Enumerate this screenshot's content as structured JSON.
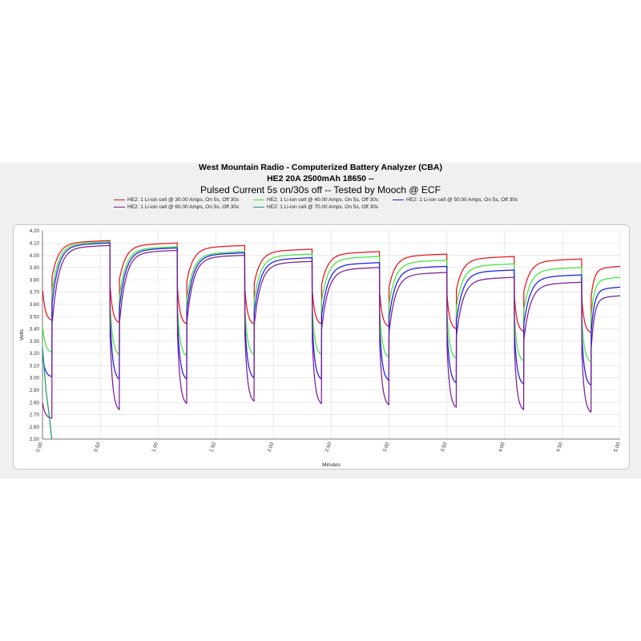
{
  "chart_data": {
    "type": "line",
    "title": "West Mountain Radio - Computerized Battery Analyzer (CBA)",
    "subtitle": "HE2 20A 2500mAh 18650 --",
    "subtitle2": "Pulsed Current 5s on/30s off -- Tested by Mooch @ ECF",
    "xlabel": "Minutes",
    "ylabel": "Volts",
    "xlim": [
      0,
      5
    ],
    "ylim": [
      2.5,
      4.2
    ],
    "xticks": [
      "0.00",
      "0.50",
      "1.00",
      "1.50",
      "2.00",
      "2.50",
      "3.00",
      "3.50",
      "4.00",
      "4.50",
      "5.00"
    ],
    "yticks": [
      "2.50",
      "2.60",
      "2.70",
      "2.80",
      "2.90",
      "3.00",
      "3.10",
      "3.20",
      "3.30",
      "3.40",
      "3.50",
      "3.60",
      "3.70",
      "3.80",
      "3.90",
      "4.00",
      "4.10",
      "4.20"
    ],
    "grid": true,
    "legend_placement": "top",
    "pulse_period_min": 0.5833,
    "pulse_on_min": 0.0833,
    "series": [
      {
        "name": "HE2: 1 Li-ion cell @ 30.00 Amps, On 5s, Off 30s",
        "color": "#e8141c",
        "rest_v": [
          4.12,
          4.1,
          4.08,
          4.05,
          4.03,
          4.01,
          3.99,
          3.97,
          3.91
        ],
        "load_v": [
          3.47,
          3.45,
          3.44,
          3.44,
          3.44,
          3.42,
          3.4,
          3.38,
          3.37
        ],
        "last_recovered_to_5min": true
      },
      {
        "name": "HE2: 1 Li-ion cell @ 40.00 Amps, On 5s, Off 30s",
        "color": "#3ee83a",
        "rest_v": [
          4.11,
          4.07,
          4.03,
          4.01,
          3.99,
          3.96,
          3.93,
          3.9,
          3.82
        ],
        "load_v": [
          3.21,
          3.19,
          3.18,
          3.19,
          3.19,
          3.17,
          3.16,
          3.14,
          3.13
        ],
        "last_recovered_to_5min": true
      },
      {
        "name": "HE2: 1 Li-ion cell @ 50.00 Amps, On 5s, Off 30s",
        "color": "#1c1ce6",
        "rest_v": [
          4.1,
          4.06,
          4.02,
          3.98,
          3.94,
          3.91,
          3.88,
          3.84,
          3.74
        ],
        "load_v": [
          3.01,
          2.99,
          2.99,
          3.0,
          2.99,
          2.98,
          2.96,
          2.95,
          2.94
        ],
        "last_recovered_to_5min": true
      },
      {
        "name": "HE2: 1 Li-ion cell @ 60.00 Amps, On 5s, Off 30s",
        "color": "#7a1e96",
        "rest_v": [
          4.08,
          4.04,
          4.0,
          3.95,
          3.9,
          3.86,
          3.82,
          3.78,
          3.67
        ],
        "load_v": [
          2.67,
          2.74,
          2.79,
          2.81,
          2.79,
          2.78,
          2.76,
          2.74,
          2.72
        ],
        "last_recovered_to_5min": true
      },
      {
        "name": "HE2: 1 Li-ion cell @ 70.00 Amps, On 5s, Off 30s",
        "color": "#1a9a6a",
        "points": [
          [
            0.0,
            3.25
          ],
          [
            0.03,
            2.9
          ],
          [
            0.06,
            2.68
          ],
          [
            0.08,
            2.5
          ]
        ]
      }
    ]
  }
}
